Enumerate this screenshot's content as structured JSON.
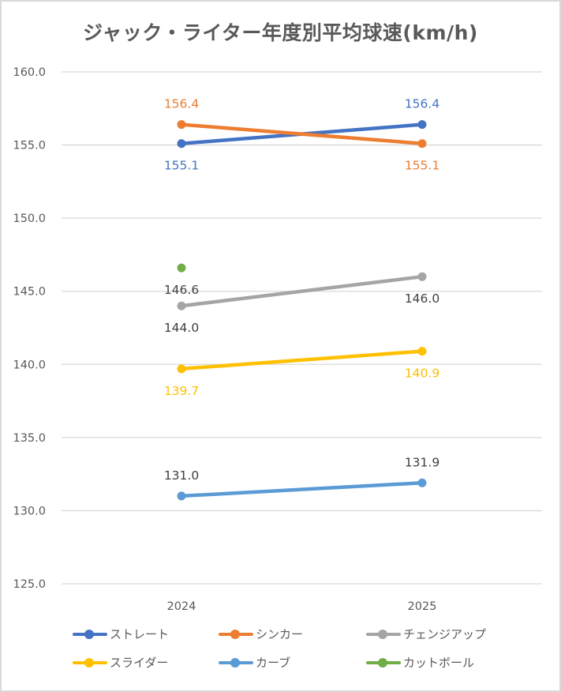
{
  "chart_data": {
    "type": "line",
    "title": "ジャック・ライター年度別平均球速(km/h)",
    "xlabel": "",
    "ylabel": "",
    "categories": [
      "2024",
      "2025"
    ],
    "ylim": [
      125.0,
      160.0
    ],
    "yticks": [
      125.0,
      130.0,
      135.0,
      140.0,
      145.0,
      150.0,
      155.0,
      160.0
    ],
    "ytick_labels": [
      "125.0",
      "130.0",
      "135.0",
      "140.0",
      "145.0",
      "150.0",
      "155.0",
      "160.0"
    ],
    "grid": true,
    "legend_position": "bottom",
    "series": [
      {
        "name": "ストレート",
        "color": "#4472c4",
        "values": [
          155.1,
          156.4
        ],
        "labels": [
          "155.1",
          "156.4"
        ],
        "label_pos": [
          "below",
          "above"
        ]
      },
      {
        "name": "シンカー",
        "color": "#ed7d31",
        "values": [
          156.4,
          155.1
        ],
        "labels": [
          "156.4",
          "155.1"
        ],
        "label_pos": [
          "above",
          "below"
        ]
      },
      {
        "name": "チェンジアップ",
        "color": "#a5a5a5",
        "label_color": "#404040",
        "values": [
          144.0,
          146.0
        ],
        "labels": [
          "144.0",
          "146.0"
        ],
        "label_pos": [
          "below",
          "below"
        ]
      },
      {
        "name": "スライダー",
        "color": "#ffc000",
        "values": [
          139.7,
          140.9
        ],
        "labels": [
          "139.7",
          "140.9"
        ],
        "label_pos": [
          "below",
          "below"
        ]
      },
      {
        "name": "カーブ",
        "color": "#5b9bd5",
        "label_color": "#404040",
        "values": [
          131.0,
          131.9
        ],
        "labels": [
          "131.0",
          "131.9"
        ],
        "label_pos": [
          "above",
          "above"
        ]
      },
      {
        "name": "カットボール",
        "color": "#70ad47",
        "label_color": "#404040",
        "values": [
          146.6,
          null
        ],
        "labels": [
          "146.6",
          null
        ],
        "label_pos": [
          "below",
          null
        ]
      }
    ]
  }
}
